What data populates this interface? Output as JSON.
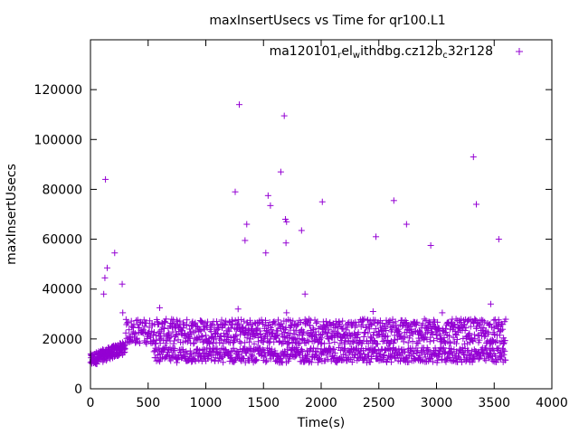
{
  "chart_data": {
    "type": "scatter",
    "title": "maxInsertUsecs vs Time for qr100.L1",
    "xlabel": "Time(s)",
    "ylabel": "maxInsertUsecs",
    "xlim": [
      0,
      4000
    ],
    "ylim": [
      0,
      140000
    ],
    "x_ticks": [
      "0",
      "500",
      "1000",
      "1500",
      "2000",
      "2500",
      "3000",
      "3500",
      "4000"
    ],
    "y_ticks": [
      "0",
      "20000",
      "40000",
      "60000",
      "80000",
      "100000",
      "120000"
    ],
    "x_tick_values": [
      0,
      500,
      1000,
      1500,
      2000,
      2500,
      3000,
      3500,
      4000
    ],
    "y_tick_values": [
      0,
      20000,
      40000,
      60000,
      80000,
      100000,
      120000
    ],
    "grid": false,
    "legend_position": "top-right",
    "series": [
      {
        "name_parts": [
          {
            "text": "ma120101",
            "sub": false
          },
          {
            "text": "r",
            "sub": true
          },
          {
            "text": "el",
            "sub": false
          },
          {
            "text": "w",
            "sub": true
          },
          {
            "text": "ithdbg.cz12b",
            "sub": false
          },
          {
            "text": "c",
            "sub": true
          },
          {
            "text": "32r128",
            "sub": false
          }
        ],
        "color": "#9400d3",
        "marker": "plus",
        "bands": [
          {
            "x_start": 0,
            "x_end": 300,
            "y_low": 9000,
            "y_high": 19000,
            "count": 170
          },
          {
            "x_start": 300,
            "x_end": 3600,
            "y_low": 18000,
            "y_high": 28000,
            "count": 1000
          },
          {
            "x_start": 550,
            "x_end": 3600,
            "y_low": 10500,
            "y_high": 16500,
            "count": 700
          }
        ],
        "outliers": [
          {
            "x": 115,
            "y": 38000
          },
          {
            "x": 125,
            "y": 44500
          },
          {
            "x": 130,
            "y": 84000
          },
          {
            "x": 145,
            "y": 48500
          },
          {
            "x": 210,
            "y": 54500
          },
          {
            "x": 275,
            "y": 42000
          },
          {
            "x": 280,
            "y": 30500
          },
          {
            "x": 600,
            "y": 32500
          },
          {
            "x": 1255,
            "y": 79000
          },
          {
            "x": 1290,
            "y": 114000
          },
          {
            "x": 1280,
            "y": 32000
          },
          {
            "x": 1340,
            "y": 59500
          },
          {
            "x": 1355,
            "y": 66000
          },
          {
            "x": 1520,
            "y": 54500
          },
          {
            "x": 1540,
            "y": 77500
          },
          {
            "x": 1560,
            "y": 73500
          },
          {
            "x": 1650,
            "y": 87000
          },
          {
            "x": 1680,
            "y": 109500
          },
          {
            "x": 1690,
            "y": 68000
          },
          {
            "x": 1700,
            "y": 67000
          },
          {
            "x": 1695,
            "y": 58500
          },
          {
            "x": 1700,
            "y": 30500
          },
          {
            "x": 1830,
            "y": 63500
          },
          {
            "x": 1860,
            "y": 38000
          },
          {
            "x": 2010,
            "y": 75000
          },
          {
            "x": 2475,
            "y": 61000
          },
          {
            "x": 2630,
            "y": 75500
          },
          {
            "x": 2740,
            "y": 66000
          },
          {
            "x": 2950,
            "y": 57500
          },
          {
            "x": 3320,
            "y": 93000
          },
          {
            "x": 3345,
            "y": 74000
          },
          {
            "x": 3470,
            "y": 34000
          },
          {
            "x": 3540,
            "y": 60000
          },
          {
            "x": 2450,
            "y": 31000
          },
          {
            "x": 3050,
            "y": 30500
          }
        ]
      }
    ]
  }
}
